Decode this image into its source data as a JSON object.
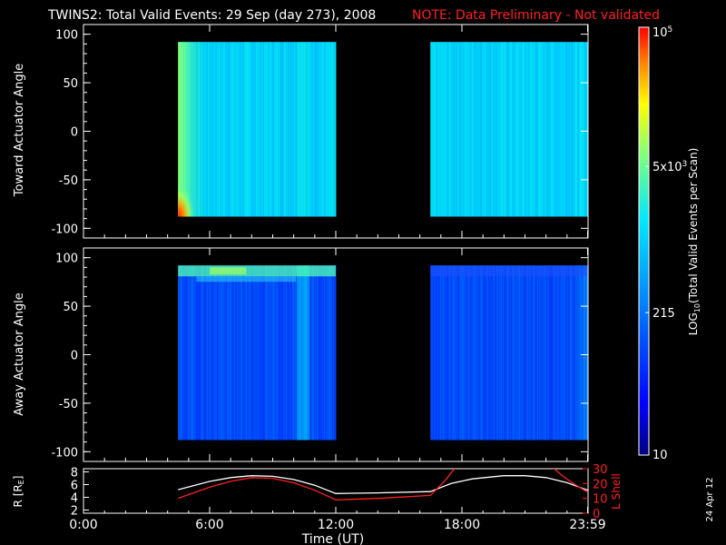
{
  "title": "TWINS2: Total Valid Events: 29 Sep (day 273), 2008",
  "note": "NOTE: Data Preliminary - Not validated",
  "date_stamp": "24 Apr 12",
  "colors": {
    "background": "#000000",
    "axes": "#ffffff",
    "note": "#ff2020",
    "r_line": "#ffffff",
    "lshell_line": "#ff2020"
  },
  "chart_data": [
    {
      "type": "heatmap",
      "panel": "toward",
      "ylabel": "Toward Actuator Angle",
      "xlim": [
        0,
        24
      ],
      "ylim": [
        -110,
        110
      ],
      "yticks": [
        100,
        50,
        0,
        -50,
        -100
      ],
      "data_blocks": [
        {
          "t_start": 4.5,
          "t_end": 12.0,
          "angle_min": -88,
          "angle_max": 92
        },
        {
          "t_start": 16.5,
          "t_end": 24.0,
          "angle_min": -88,
          "angle_max": 92
        }
      ],
      "color_scale": "log",
      "notes_on_pattern": [
        "greenish-cyan near start of first block",
        "orange-red hotspot at lower-left of first block"
      ]
    },
    {
      "type": "heatmap",
      "panel": "away",
      "ylabel": "Away Actuator Angle",
      "xlim": [
        0,
        24
      ],
      "ylim": [
        -110,
        110
      ],
      "yticks": [
        100,
        50,
        0,
        -50,
        -100
      ],
      "data_blocks": [
        {
          "t_start": 4.5,
          "t_end": 12.0,
          "angle_min": -88,
          "angle_max": 92
        },
        {
          "t_start": 16.5,
          "t_end": 24.0,
          "angle_min": -88,
          "angle_max": 92
        }
      ],
      "color_scale": "log"
    },
    {
      "type": "line",
      "panel": "orbit",
      "ylabel_left": "R [R",
      "ylabel_left_sub": "E",
      "ylabel_left_end": "]",
      "ylabel_right": "L Shell",
      "xlim": [
        0,
        24
      ],
      "ylim_left": [
        1.5,
        8.5
      ],
      "yticks_left": [
        2,
        4,
        6,
        8
      ],
      "ylim_right": [
        0,
        30
      ],
      "yticks_right": [
        0,
        10,
        20,
        30
      ],
      "xlabel": "Time (UT)",
      "xtick_labels": [
        "0:00",
        "6:00",
        "12:00",
        "18:00",
        "23:59"
      ],
      "xtick_values": [
        0,
        6,
        12,
        18,
        23.98
      ],
      "series": [
        {
          "name": "R",
          "axis": "left",
          "x": [
            4.5,
            6,
            7,
            8,
            9,
            10,
            11,
            12,
            14,
            16.5,
            17.5,
            18.5,
            20,
            21,
            22,
            23,
            24
          ],
          "y": [
            5.2,
            6.5,
            7.1,
            7.4,
            7.3,
            6.8,
            5.9,
            4.6,
            4.7,
            4.9,
            6.2,
            6.9,
            7.4,
            7.4,
            7.1,
            6.3,
            5.1
          ]
        },
        {
          "name": "L Shell",
          "axis": "right",
          "x": [
            4.5,
            6,
            7,
            8,
            9,
            10,
            11,
            12,
            14,
            16.5,
            17.2,
            17.7
          ],
          "y": [
            10,
            17.5,
            21.5,
            24,
            23.5,
            20.5,
            15.5,
            9,
            10,
            12,
            22,
            31
          ],
          "x2": [
            22.3,
            22.8,
            23.3,
            24
          ],
          "y2": [
            31,
            25,
            20,
            14
          ]
        }
      ]
    }
  ],
  "colorbar": {
    "label_main": "LOG",
    "label_sub": "10",
    "label_rest": "(Total Valid  Events per Scan)",
    "ticks": [
      {
        "label": "10",
        "value": 10
      },
      {
        "label": "215",
        "value": 215
      },
      {
        "label": "5x10",
        "sup": "3",
        "value": 5000
      },
      {
        "label": "10",
        "sup": "5",
        "value": 100000
      }
    ],
    "range": [
      10,
      100000
    ]
  }
}
